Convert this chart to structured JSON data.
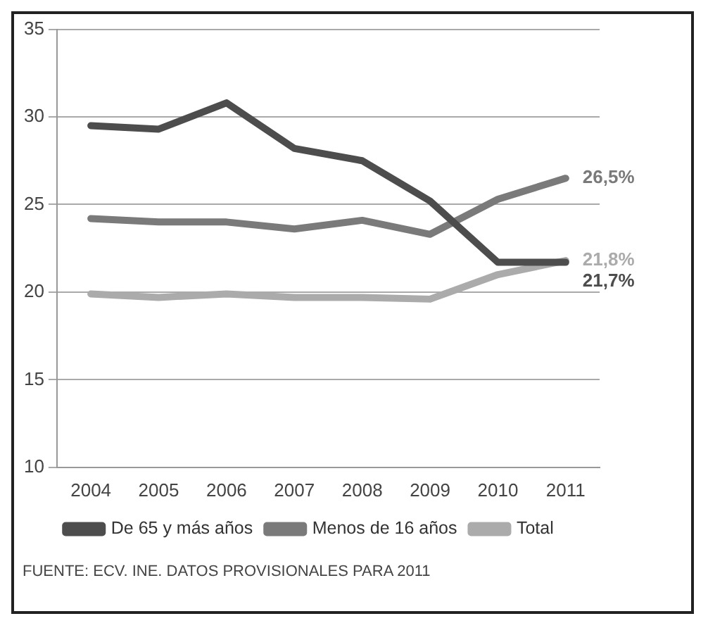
{
  "chart_data": {
    "type": "line",
    "categories": [
      "2004",
      "2005",
      "2006",
      "2007",
      "2008",
      "2009",
      "2010",
      "2011"
    ],
    "series": [
      {
        "name": "De 65 y más años",
        "color": "#4d4d4d",
        "values": [
          29.5,
          29.3,
          30.8,
          28.2,
          27.5,
          25.2,
          21.7,
          21.7
        ]
      },
      {
        "name": "Menos de 16 años",
        "color": "#7a7a7a",
        "values": [
          24.2,
          24.0,
          24.0,
          23.6,
          24.1,
          23.3,
          25.3,
          26.5
        ]
      },
      {
        "name": "Total",
        "color": "#ababab",
        "values": [
          19.9,
          19.7,
          19.9,
          19.7,
          19.7,
          19.6,
          21.0,
          21.8
        ]
      }
    ],
    "ylim": [
      10,
      35
    ],
    "yticks": [
      10,
      15,
      20,
      25,
      30,
      35
    ],
    "grid": "y",
    "legend": "bottom",
    "marker": "none",
    "line_style": "solid",
    "annotations": [
      {
        "text": "26,5%",
        "x": "2011",
        "y": 26.5
      },
      {
        "text": "21,8%",
        "x": "2011",
        "y": 21.8
      },
      {
        "text": "21,7%",
        "x": "2011",
        "y": 21.7
      },
      "FUENTE: ECV. INE. DATOS PROVISIONALES PARA 2011"
    ]
  }
}
